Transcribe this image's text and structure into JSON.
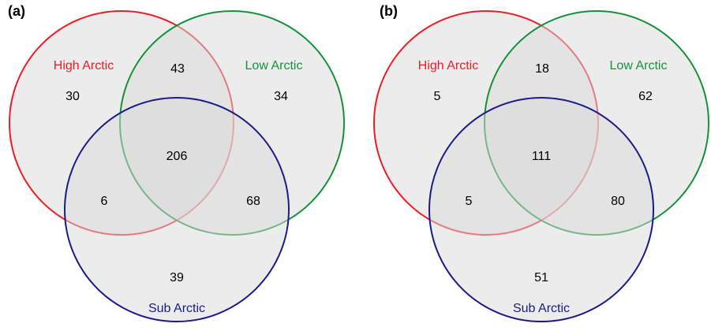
{
  "panels": [
    {
      "label": "(a)",
      "sets": {
        "high_arctic": {
          "label": "High Arctic",
          "color": "#ee1c24"
        },
        "low_arctic": {
          "label": "Low Arctic",
          "color": "#14923a"
        },
        "sub_arctic": {
          "label": "Sub Arctic",
          "color": "#1c1a8a"
        }
      },
      "counts": {
        "high_only": "30",
        "high_low": "43",
        "low_only": "34",
        "all_three": "206",
        "high_sub": "6",
        "low_sub": "68",
        "sub_only": "39"
      }
    },
    {
      "label": "(b)",
      "sets": {
        "high_arctic": {
          "label": "High Arctic",
          "color": "#ee1c24"
        },
        "low_arctic": {
          "label": "Low Arctic",
          "color": "#14923a"
        },
        "sub_arctic": {
          "label": "Sub Arctic",
          "color": "#1c1a8a"
        }
      },
      "counts": {
        "high_only": "5",
        "high_low": "18",
        "low_only": "62",
        "all_three": "111",
        "high_sub": "5",
        "low_sub": "80",
        "sub_only": "51"
      }
    }
  ],
  "colors": {
    "fill": "#d9d9d9",
    "background": "#ffffff"
  }
}
